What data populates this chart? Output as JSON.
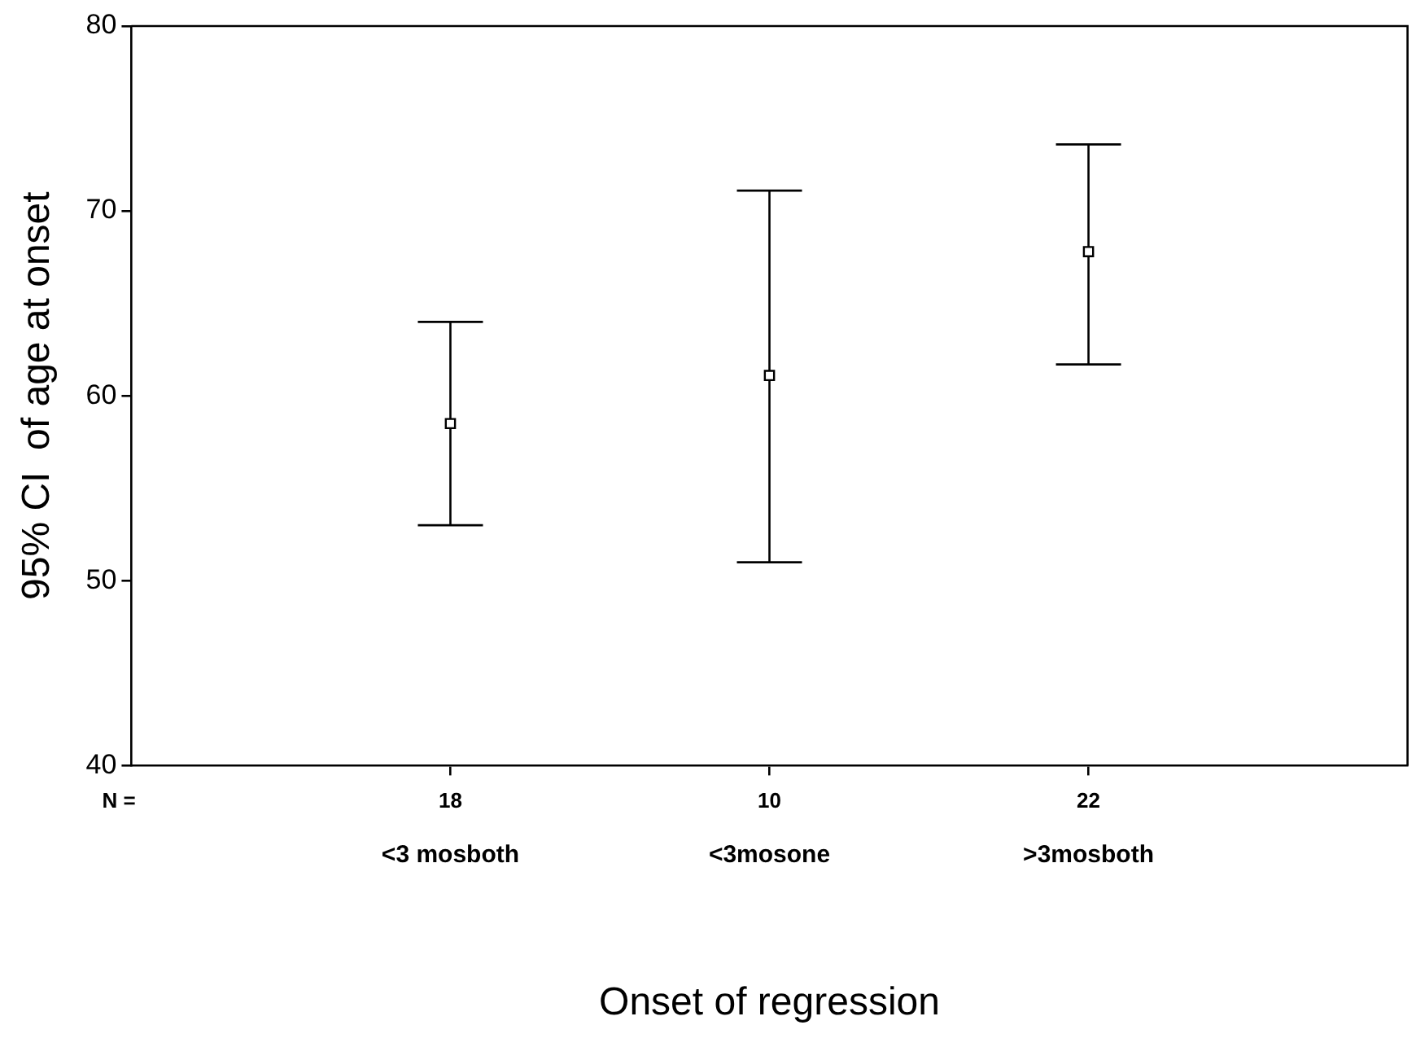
{
  "chart_data": {
    "type": "scatter",
    "xlabel": "Onset of regression",
    "ylabel": "95% CI  of age at onset",
    "categories": [
      "<3 mosboth",
      "<3mosone",
      ">3mosboth"
    ],
    "color": "#000000",
    "values": [
      58.5,
      61.1,
      67.8
    ],
    "errors": [
      [
        53,
        64
      ],
      [
        51,
        71.1
      ],
      [
        61.7,
        73.6
      ]
    ],
    "ylim": [
      40,
      80
    ],
    "yticks": [
      40,
      50,
      60,
      70,
      80
    ],
    "grid": false,
    "legend": false,
    "marker": "square",
    "annotations": [
      "N =",
      {
        "text": "18",
        "x": "<3 mosboth"
      },
      {
        "text": "10",
        "x": "<3mosone"
      },
      {
        "text": "22",
        "x": ">3mosboth"
      }
    ]
  }
}
